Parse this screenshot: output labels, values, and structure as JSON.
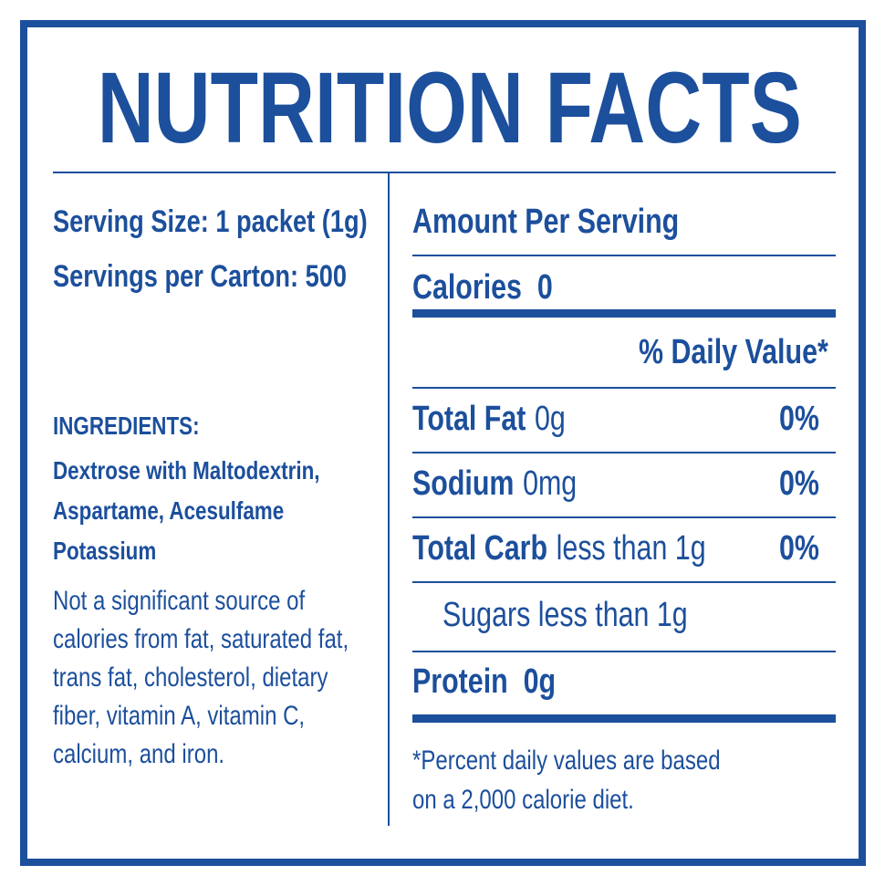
{
  "title": "NUTRITION FACTS",
  "left": {
    "serving_size": "Serving Size: 1 packet (1g)",
    "servings_per_carton": "Servings per Carton: 500",
    "ingredients_heading": "INGREDIENTS:",
    "ingredients": "Dextrose with Maltodextrin, Aspartame, Acesulfame Potassium",
    "note": "Not a significant source of calories from fat, saturated fat, trans fat, cholesterol, dietary fiber, vitamin A, vitamin C, calcium, and iron."
  },
  "right": {
    "amount_per_serving": "Amount Per Serving",
    "calories": {
      "label": "Calories",
      "value": "0"
    },
    "daily_value_heading": "% Daily Value*",
    "rows": [
      {
        "name": "Total Fat",
        "amount": "0g",
        "dv": "0%"
      },
      {
        "name": "Sodium",
        "amount": "0mg",
        "dv": "0%"
      },
      {
        "name": "Total Carb",
        "amount": "less than 1g",
        "dv": "0%"
      }
    ],
    "sugars": "Sugars less than 1g",
    "protein": {
      "label": "Protein",
      "value": "0g"
    },
    "footnote": "*Percent daily values are based on a 2,000 calorie diet."
  }
}
